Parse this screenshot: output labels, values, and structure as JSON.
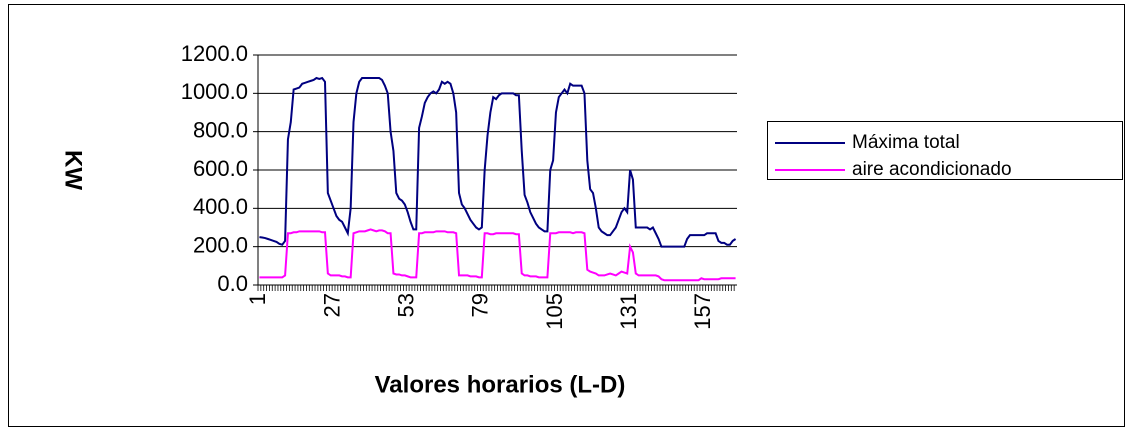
{
  "chart_data": {
    "type": "line",
    "x_label": "Valores horarios (L-D)",
    "y_label": "KW",
    "x": [
      1,
      2,
      3,
      4,
      5,
      6,
      7,
      8,
      9,
      10,
      11,
      12,
      13,
      14,
      15,
      16,
      17,
      18,
      19,
      20,
      21,
      22,
      23,
      24,
      25,
      26,
      27,
      28,
      29,
      30,
      31,
      32,
      33,
      34,
      35,
      36,
      37,
      38,
      39,
      40,
      41,
      42,
      43,
      44,
      45,
      46,
      47,
      48,
      49,
      50,
      51,
      52,
      53,
      54,
      55,
      56,
      57,
      58,
      59,
      60,
      61,
      62,
      63,
      64,
      65,
      66,
      67,
      68,
      69,
      70,
      71,
      72,
      73,
      74,
      75,
      76,
      77,
      78,
      79,
      80,
      81,
      82,
      83,
      84,
      85,
      86,
      87,
      88,
      89,
      90,
      91,
      92,
      93,
      94,
      95,
      96,
      97,
      98,
      99,
      100,
      101,
      102,
      103,
      104,
      105,
      106,
      107,
      108,
      109,
      110,
      111,
      112,
      113,
      114,
      115,
      116,
      117,
      118,
      119,
      120,
      121,
      122,
      123,
      124,
      125,
      126,
      127,
      128,
      129,
      130,
      131,
      132,
      133,
      134,
      135,
      136,
      137,
      138,
      139,
      140,
      141,
      142,
      143,
      144,
      145,
      146,
      147,
      148,
      149,
      150,
      151,
      152,
      153,
      154,
      155,
      156,
      157,
      158,
      159,
      160,
      161,
      162,
      163,
      164,
      165,
      166,
      167,
      168
    ],
    "xlim": [
      0.5,
      168.5
    ],
    "xticks": [
      1,
      27,
      53,
      79,
      105,
      131,
      157
    ],
    "ylim": [
      0,
      1200
    ],
    "yticks": [
      {
        "value": 0,
        "label": "0.0"
      },
      {
        "value": 200,
        "label": "200.0"
      },
      {
        "value": 400,
        "label": "400.0"
      },
      {
        "value": 600,
        "label": "600.0"
      },
      {
        "value": 800,
        "label": "800.0"
      },
      {
        "value": 1000,
        "label": "1000.0"
      },
      {
        "value": 1200,
        "label": "1200.0"
      }
    ],
    "grid": true,
    "legend": "right",
    "series": [
      {
        "name": "Máxima total",
        "color": "#000080",
        "values": [
          250,
          248,
          245,
          240,
          235,
          230,
          225,
          215,
          210,
          230,
          760,
          850,
          1020,
          1025,
          1030,
          1050,
          1055,
          1060,
          1065,
          1070,
          1080,
          1075,
          1080,
          1060,
          480,
          440,
          400,
          360,
          340,
          330,
          300,
          270,
          400,
          850,
          1000,
          1060,
          1080,
          1080,
          1080,
          1080,
          1080,
          1080,
          1080,
          1070,
          1040,
          1000,
          800,
          700,
          480,
          450,
          440,
          420,
          380,
          330,
          290,
          290,
          820,
          880,
          950,
          980,
          1000,
          1010,
          1000,
          1020,
          1060,
          1050,
          1060,
          1050,
          1000,
          900,
          480,
          420,
          400,
          370,
          340,
          320,
          300,
          290,
          300,
          600,
          780,
          900,
          980,
          970,
          990,
          1000,
          1000,
          1000,
          1000,
          1000,
          990,
          990,
          700,
          470,
          430,
          380,
          350,
          320,
          300,
          290,
          280,
          280,
          600,
          650,
          900,
          980,
          1000,
          1020,
          1000,
          1050,
          1040,
          1040,
          1040,
          1040,
          1000,
          650,
          500,
          480,
          400,
          300,
          280,
          270,
          260,
          260,
          280,
          300,
          340,
          380,
          400,
          380,
          600,
          550,
          300,
          300,
          300,
          300,
          300,
          290,
          300,
          270,
          240,
          200,
          200,
          200,
          200,
          200,
          200,
          200,
          200,
          200,
          240,
          260,
          260,
          260,
          260,
          260,
          260,
          270,
          270,
          270,
          270,
          230,
          220,
          220,
          210,
          210,
          230,
          240
        ]
      },
      {
        "name": "aire acondicionado",
        "color": "#ff00ff",
        "values": [
          40,
          40,
          40,
          40,
          40,
          40,
          40,
          40,
          40,
          50,
          270,
          270,
          275,
          275,
          280,
          280,
          280,
          280,
          280,
          280,
          280,
          280,
          275,
          275,
          60,
          50,
          50,
          50,
          50,
          45,
          45,
          40,
          40,
          270,
          275,
          280,
          280,
          280,
          285,
          290,
          285,
          280,
          285,
          285,
          280,
          270,
          270,
          60,
          55,
          55,
          50,
          50,
          45,
          40,
          40,
          40,
          270,
          270,
          275,
          275,
          275,
          275,
          280,
          280,
          280,
          280,
          275,
          275,
          275,
          270,
          50,
          50,
          50,
          50,
          45,
          45,
          45,
          40,
          40,
          270,
          270,
          265,
          265,
          270,
          270,
          270,
          270,
          270,
          270,
          270,
          265,
          265,
          60,
          50,
          50,
          45,
          45,
          45,
          40,
          40,
          40,
          40,
          270,
          270,
          270,
          275,
          275,
          275,
          275,
          275,
          270,
          275,
          275,
          275,
          270,
          80,
          70,
          65,
          60,
          50,
          50,
          50,
          55,
          60,
          55,
          50,
          60,
          70,
          65,
          60,
          200,
          170,
          60,
          50,
          50,
          50,
          50,
          50,
          50,
          50,
          45,
          30,
          25,
          25,
          25,
          25,
          25,
          25,
          25,
          25,
          25,
          25,
          25,
          25,
          25,
          35,
          30,
          30,
          30,
          30,
          30,
          30,
          35,
          35,
          35,
          35,
          35,
          35
        ]
      }
    ]
  }
}
